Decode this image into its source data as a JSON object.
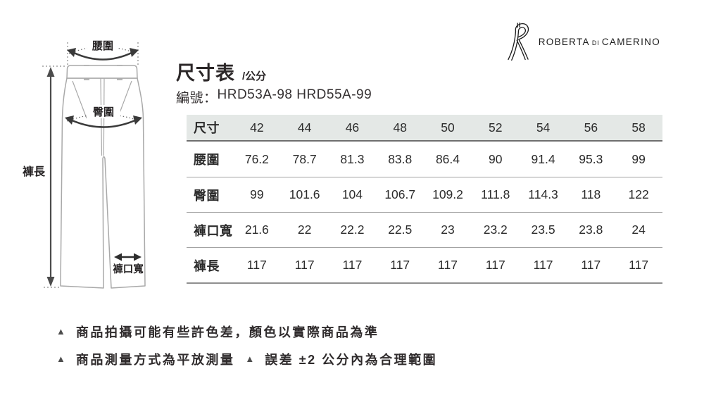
{
  "brand": {
    "logo_icon": "ribbon-R",
    "name_primary": "ROBERTA",
    "name_middle": "di",
    "name_secondary": "CAMERINO"
  },
  "header": {
    "title": "尺寸表",
    "unit": "/公分",
    "code_label": "編號：",
    "code_value": "HRD53A-98 HRD55A-99"
  },
  "diagram": {
    "waist_label": "腰圍",
    "hip_label": "臀圍",
    "length_label": "褲長",
    "hem_label": "褲口寬"
  },
  "size_table": {
    "header_label": "尺寸",
    "sizes": [
      "42",
      "44",
      "46",
      "48",
      "50",
      "52",
      "54",
      "56",
      "58"
    ],
    "rows": [
      {
        "label": "腰圍",
        "values": [
          "76.2",
          "78.7",
          "81.3",
          "83.8",
          "86.4",
          "90",
          "91.4",
          "95.3",
          "99"
        ]
      },
      {
        "label": "臀圍",
        "values": [
          "99",
          "101.6",
          "104",
          "106.7",
          "109.2",
          "111.8",
          "114.3",
          "118",
          "122"
        ]
      },
      {
        "label": "褲口寬",
        "values": [
          "21.6",
          "22",
          "22.2",
          "22.5",
          "23",
          "23.2",
          "23.5",
          "23.8",
          "24"
        ]
      },
      {
        "label": "褲長",
        "values": [
          "117",
          "117",
          "117",
          "117",
          "117",
          "117",
          "117",
          "117",
          "117"
        ]
      }
    ]
  },
  "notes": {
    "bullet": "▲",
    "line1_text": "商品拍攝可能有些許色差，顏色以實際商品為準",
    "line2_seg1": "商品測量方式為平放測量",
    "line2_seg2": "誤差 ±2 公分內為合理範圍"
  },
  "colors": {
    "table_header_bg": "#e4e8e6",
    "text": "#2b2728",
    "line_gray": "#a2a2a2"
  }
}
